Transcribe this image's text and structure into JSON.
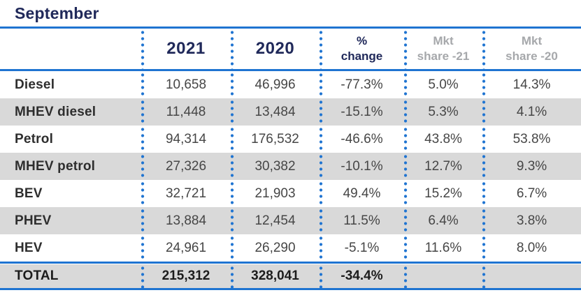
{
  "chart_data": {
    "type": "table",
    "title": "September",
    "column_headers": [
      "",
      "2021",
      "2020",
      "% change",
      "Mkt share -21",
      "Mkt share -20"
    ],
    "rows": [
      [
        "Diesel",
        "10,658",
        "46,996",
        "-77.3%",
        "5.0%",
        "14.3%"
      ],
      [
        "MHEV diesel",
        "11,448",
        "13,484",
        "-15.1%",
        "5.3%",
        "4.1%"
      ],
      [
        "Petrol",
        "94,314",
        "176,532",
        "-46.6%",
        "43.8%",
        "53.8%"
      ],
      [
        "MHEV petrol",
        "27,326",
        "30,382",
        "-10.1%",
        "12.7%",
        "9.3%"
      ],
      [
        "BEV",
        "32,721",
        "21,903",
        "49.4%",
        "15.2%",
        "6.7%"
      ],
      [
        "PHEV",
        "13,884",
        "12,454",
        "11.5%",
        "6.4%",
        "3.8%"
      ],
      [
        "HEV",
        "24,961",
        "26,290",
        "-5.1%",
        "11.6%",
        "8.0%"
      ],
      [
        "TOTAL",
        "215,312",
        "328,041",
        "-34.4%",
        "",
        ""
      ]
    ]
  },
  "header_display": {
    "y2021": "2021",
    "y2020": "2020",
    "pct": {
      "line1": "%",
      "line2": "change"
    },
    "mkt21": {
      "line1": "Mkt",
      "line2": "share -21"
    },
    "mkt20": {
      "line1": "Mkt",
      "line2": "share -20"
    }
  },
  "colors": {
    "rule_blue": "#1f74d1",
    "navy": "#20295a",
    "stripe_gray": "#d9d9d9",
    "muted_header_gray": "#a6a8ab",
    "value_text": "#464646"
  }
}
